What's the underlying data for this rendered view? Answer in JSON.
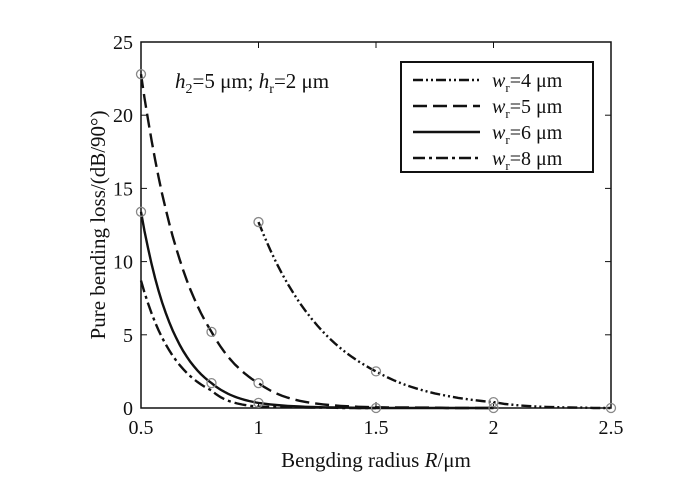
{
  "chart_data": {
    "type": "line",
    "title": "",
    "annotation": {
      "h2": "h",
      "h2_sub": "2",
      "h2_val": "=5 μm; ",
      "hr": "h",
      "hr_sub": "r",
      "hr_val": "=2 μm"
    },
    "xlabel": {
      "text": "Bengding radius ",
      "var": "R",
      "unit": "/μm"
    },
    "ylabel": "Pure bending loss/(dB/90°)",
    "xlim": [
      0.5,
      2.5
    ],
    "ylim": [
      0,
      25
    ],
    "xticks": [
      "0.5",
      "1",
      "1.5",
      "2",
      "2.5"
    ],
    "yticks": [
      "0",
      "5",
      "10",
      "15",
      "20",
      "25"
    ],
    "grid": false,
    "legend_position": "top-right",
    "series": [
      {
        "name": "w_r=4 μm",
        "var": "w",
        "sub": "r",
        "val": "=4 μm",
        "style": "dash-dot-dot",
        "x": [
          1.0,
          1.5,
          2.0,
          2.5
        ],
        "y": [
          12.7,
          2.5,
          0.4,
          0.0
        ],
        "markers": [
          true,
          true,
          true,
          true
        ]
      },
      {
        "name": "w_r=5 μm",
        "var": "w",
        "sub": "r",
        "val": "=5 μm",
        "style": "dashed",
        "x": [
          0.5,
          0.8,
          1.0,
          1.5,
          2.0
        ],
        "y": [
          22.8,
          5.2,
          1.7,
          0.05,
          0.0
        ],
        "markers": [
          true,
          true,
          true,
          false,
          true
        ]
      },
      {
        "name": "w_r=6 μm",
        "var": "w",
        "sub": "r",
        "val": "=6 μm",
        "style": "solid",
        "x": [
          0.5,
          0.8,
          1.0,
          1.5,
          2.0
        ],
        "y": [
          13.4,
          1.7,
          0.35,
          0.0,
          0.0
        ],
        "markers": [
          true,
          true,
          true,
          true,
          false
        ]
      },
      {
        "name": "w_r=8 μm",
        "var": "w",
        "sub": "r",
        "val": "=8 μm",
        "style": "dash-dot",
        "x": [
          0.5,
          0.8,
          1.0,
          1.5
        ],
        "y": [
          8.7,
          1.2,
          0.1,
          0.0
        ],
        "markers": [
          false,
          false,
          false,
          false
        ]
      }
    ]
  }
}
